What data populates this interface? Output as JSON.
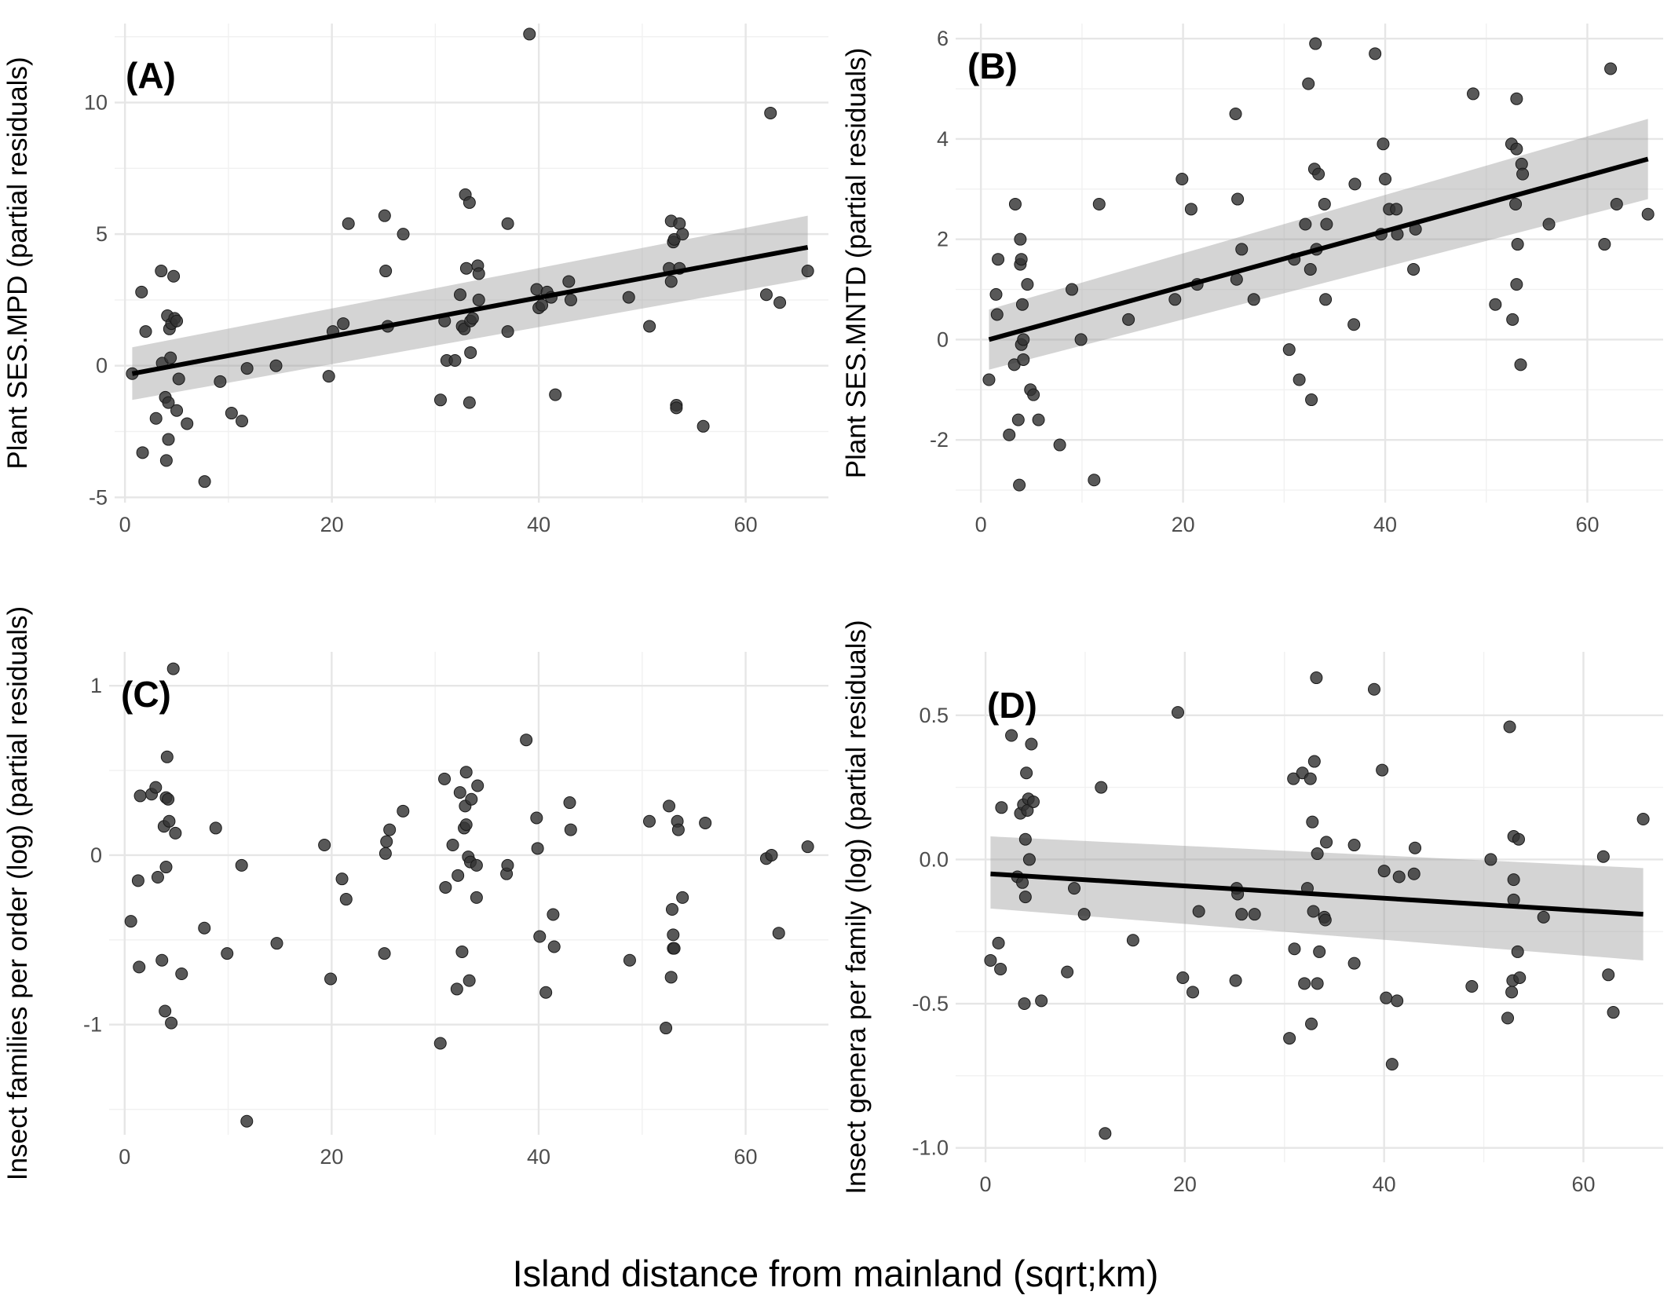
{
  "figure": {
    "xlabel": "Island distance from mainland (sqrt;km)"
  },
  "chart_data": [
    {
      "type": "scatter",
      "panel_label": "(A)",
      "ylabel": "Plant SES.MPD (partial residuals)",
      "xlim": [
        -1,
        68
      ],
      "ylim": [
        -5.2,
        13.0
      ],
      "xticks": [
        0,
        20,
        40,
        60
      ],
      "yticks": [
        -5,
        0,
        5,
        10
      ],
      "ytick_labels": [
        "-5",
        "0",
        "5",
        "10"
      ],
      "grid": true,
      "points": [
        [
          0.7,
          -0.3
        ],
        [
          1.6,
          2.8
        ],
        [
          1.7,
          -3.3
        ],
        [
          2.0,
          1.3
        ],
        [
          3.0,
          -2.0
        ],
        [
          3.5,
          3.6
        ],
        [
          3.6,
          0.1
        ],
        [
          3.9,
          -1.2
        ],
        [
          4.0,
          -3.6
        ],
        [
          4.1,
          1.9
        ],
        [
          4.2,
          -1.4
        ],
        [
          4.2,
          -2.8
        ],
        [
          4.3,
          1.4
        ],
        [
          4.4,
          0.3
        ],
        [
          4.5,
          1.6
        ],
        [
          4.7,
          3.4
        ],
        [
          4.8,
          1.8
        ],
        [
          5.0,
          1.7
        ],
        [
          5.0,
          -1.7
        ],
        [
          5.2,
          -0.5
        ],
        [
          6.0,
          -2.2
        ],
        [
          7.7,
          -4.4
        ],
        [
          9.2,
          -0.6
        ],
        [
          10.3,
          -1.8
        ],
        [
          11.3,
          -2.1
        ],
        [
          11.8,
          -0.1
        ],
        [
          14.6,
          0.0
        ],
        [
          19.7,
          -0.4
        ],
        [
          20.1,
          1.3
        ],
        [
          21.1,
          1.6
        ],
        [
          21.6,
          5.4
        ],
        [
          25.1,
          5.7
        ],
        [
          25.2,
          3.6
        ],
        [
          25.4,
          1.5
        ],
        [
          26.9,
          5.0
        ],
        [
          30.5,
          -1.3
        ],
        [
          30.9,
          1.7
        ],
        [
          31.1,
          0.2
        ],
        [
          31.9,
          0.2
        ],
        [
          32.4,
          2.7
        ],
        [
          32.6,
          1.5
        ],
        [
          32.8,
          1.4
        ],
        [
          32.9,
          6.5
        ],
        [
          33.0,
          3.7
        ],
        [
          33.3,
          -1.4
        ],
        [
          33.3,
          6.2
        ],
        [
          33.4,
          1.7
        ],
        [
          33.4,
          0.5
        ],
        [
          33.6,
          1.8
        ],
        [
          34.1,
          3.8
        ],
        [
          34.2,
          3.5
        ],
        [
          34.2,
          2.5
        ],
        [
          37.0,
          5.4
        ],
        [
          37.0,
          1.3
        ],
        [
          39.1,
          12.6
        ],
        [
          39.8,
          2.9
        ],
        [
          40.0,
          2.2
        ],
        [
          40.3,
          2.3
        ],
        [
          40.8,
          2.8
        ],
        [
          41.2,
          2.6
        ],
        [
          41.6,
          -1.1
        ],
        [
          42.9,
          3.2
        ],
        [
          43.1,
          2.5
        ],
        [
          48.7,
          2.6
        ],
        [
          50.7,
          1.5
        ],
        [
          52.6,
          3.7
        ],
        [
          52.8,
          5.5
        ],
        [
          52.8,
          3.2
        ],
        [
          53.0,
          4.7
        ],
        [
          53.1,
          4.8
        ],
        [
          53.3,
          -1.5
        ],
        [
          53.3,
          -1.6
        ],
        [
          53.6,
          3.7
        ],
        [
          53.6,
          5.4
        ],
        [
          53.9,
          5.0
        ],
        [
          55.9,
          -2.3
        ],
        [
          62.0,
          2.7
        ],
        [
          62.4,
          9.6
        ],
        [
          63.3,
          2.4
        ],
        [
          66.0,
          3.6
        ]
      ],
      "fit": {
        "x": [
          0.7,
          66.0
        ],
        "y": [
          -0.3,
          4.5
        ],
        "ci_low": [
          -1.3,
          3.3
        ],
        "ci_high": [
          0.7,
          5.7
        ]
      }
    },
    {
      "type": "scatter",
      "panel_label": "(B)",
      "ylabel": "Plant SES.MNTD (partial residuals)",
      "xlim": [
        -2.5,
        67.5
      ],
      "ylim": [
        -3.25,
        6.3
      ],
      "xticks": [
        0,
        20,
        40,
        60
      ],
      "yticks": [
        -2,
        0,
        2,
        4,
        6
      ],
      "ytick_labels": [
        "-2",
        "0",
        "2",
        "4",
        "6"
      ],
      "grid": true,
      "points": [
        [
          0.8,
          -0.8
        ],
        [
          1.5,
          0.9
        ],
        [
          1.6,
          0.5
        ],
        [
          1.7,
          1.6
        ],
        [
          2.8,
          -1.9
        ],
        [
          3.3,
          -0.5
        ],
        [
          3.4,
          2.7
        ],
        [
          3.7,
          -1.6
        ],
        [
          3.8,
          -2.9
        ],
        [
          3.9,
          2.0
        ],
        [
          3.9,
          1.5
        ],
        [
          4.0,
          1.6
        ],
        [
          4.0,
          -0.1
        ],
        [
          4.1,
          0.7
        ],
        [
          4.2,
          -0.4
        ],
        [
          4.2,
          0.0
        ],
        [
          4.6,
          1.1
        ],
        [
          4.9,
          -1.0
        ],
        [
          5.2,
          -1.1
        ],
        [
          5.7,
          -1.6
        ],
        [
          7.8,
          -2.1
        ],
        [
          9.0,
          1.0
        ],
        [
          9.9,
          0.0
        ],
        [
          11.2,
          -2.8
        ],
        [
          11.7,
          2.7
        ],
        [
          14.6,
          0.4
        ],
        [
          19.2,
          0.8
        ],
        [
          19.9,
          3.2
        ],
        [
          20.8,
          2.6
        ],
        [
          21.4,
          1.1
        ],
        [
          25.2,
          4.5
        ],
        [
          25.3,
          1.2
        ],
        [
          25.4,
          2.8
        ],
        [
          25.8,
          1.8
        ],
        [
          27.0,
          0.8
        ],
        [
          30.5,
          -0.2
        ],
        [
          31.0,
          1.6
        ],
        [
          31.5,
          -0.8
        ],
        [
          32.1,
          2.3
        ],
        [
          32.4,
          5.1
        ],
        [
          32.6,
          1.4
        ],
        [
          32.7,
          -1.2
        ],
        [
          33.0,
          3.4
        ],
        [
          33.1,
          5.9
        ],
        [
          33.2,
          1.8
        ],
        [
          33.4,
          3.3
        ],
        [
          34.0,
          2.7
        ],
        [
          34.1,
          0.8
        ],
        [
          34.2,
          2.3
        ],
        [
          36.9,
          0.3
        ],
        [
          37.0,
          3.1
        ],
        [
          39.0,
          5.7
        ],
        [
          39.6,
          2.1
        ],
        [
          39.8,
          3.9
        ],
        [
          40.0,
          3.2
        ],
        [
          40.4,
          2.6
        ],
        [
          41.1,
          2.6
        ],
        [
          41.2,
          2.1
        ],
        [
          42.8,
          1.4
        ],
        [
          43.0,
          2.2
        ],
        [
          48.7,
          4.9
        ],
        [
          50.9,
          0.7
        ],
        [
          52.5,
          3.9
        ],
        [
          52.6,
          0.4
        ],
        [
          52.9,
          2.7
        ],
        [
          53.0,
          4.8
        ],
        [
          53.0,
          3.8
        ],
        [
          53.0,
          1.1
        ],
        [
          53.1,
          1.9
        ],
        [
          53.4,
          -0.5
        ],
        [
          53.5,
          3.5
        ],
        [
          53.6,
          3.3
        ],
        [
          56.2,
          2.3
        ],
        [
          61.7,
          1.9
        ],
        [
          62.3,
          5.4
        ],
        [
          62.9,
          2.7
        ],
        [
          66.0,
          2.5
        ]
      ],
      "fit": {
        "x": [
          0.8,
          66.0
        ],
        "y": [
          0.0,
          3.6
        ],
        "ci_low": [
          -0.6,
          2.8
        ],
        "ci_high": [
          0.6,
          4.4
        ]
      }
    },
    {
      "type": "scatter",
      "panel_label": "(C)",
      "ylabel": "Insect families per order (log) (partial residuals)",
      "xlim": [
        -1.5,
        68
      ],
      "ylim": [
        -1.65,
        1.2
      ],
      "xticks": [
        0,
        20,
        40,
        60
      ],
      "yticks": [
        -1,
        0,
        1
      ],
      "ytick_labels": [
        "-1",
        "0",
        "1"
      ],
      "grid": true,
      "points": [
        [
          0.6,
          -0.39
        ],
        [
          1.3,
          -0.15
        ],
        [
          1.4,
          -0.66
        ],
        [
          1.5,
          0.35
        ],
        [
          2.6,
          0.36
        ],
        [
          3.0,
          0.4
        ],
        [
          3.2,
          -0.13
        ],
        [
          3.6,
          -0.62
        ],
        [
          3.8,
          0.17
        ],
        [
          3.9,
          -0.92
        ],
        [
          4.0,
          0.34
        ],
        [
          4.0,
          -0.07
        ],
        [
          4.1,
          0.58
        ],
        [
          4.2,
          0.33
        ],
        [
          4.3,
          0.2
        ],
        [
          4.5,
          -0.99
        ],
        [
          4.7,
          1.1
        ],
        [
          4.9,
          0.13
        ],
        [
          5.5,
          -0.7
        ],
        [
          7.7,
          -0.43
        ],
        [
          8.8,
          0.16
        ],
        [
          9.9,
          -0.58
        ],
        [
          11.3,
          -0.06
        ],
        [
          11.8,
          -1.57
        ],
        [
          14.7,
          -0.52
        ],
        [
          19.3,
          0.06
        ],
        [
          19.9,
          -0.73
        ],
        [
          21.0,
          -0.14
        ],
        [
          21.4,
          -0.26
        ],
        [
          25.1,
          -0.58
        ],
        [
          25.2,
          0.01
        ],
        [
          25.3,
          0.08
        ],
        [
          25.6,
          0.15
        ],
        [
          26.9,
          0.26
        ],
        [
          30.5,
          -1.11
        ],
        [
          30.9,
          0.45
        ],
        [
          31.0,
          -0.19
        ],
        [
          31.7,
          0.06
        ],
        [
          32.1,
          -0.79
        ],
        [
          32.2,
          -0.12
        ],
        [
          32.4,
          0.37
        ],
        [
          32.6,
          -0.57
        ],
        [
          32.8,
          0.16
        ],
        [
          32.9,
          0.29
        ],
        [
          33.0,
          0.18
        ],
        [
          33.0,
          0.49
        ],
        [
          33.2,
          -0.01
        ],
        [
          33.3,
          -0.74
        ],
        [
          33.4,
          -0.04
        ],
        [
          33.5,
          0.33
        ],
        [
          34.0,
          -0.25
        ],
        [
          34.0,
          -0.06
        ],
        [
          34.1,
          0.41
        ],
        [
          36.9,
          -0.11
        ],
        [
          37.0,
          -0.06
        ],
        [
          38.8,
          0.68
        ],
        [
          39.8,
          0.22
        ],
        [
          39.9,
          0.04
        ],
        [
          40.1,
          -0.48
        ],
        [
          40.7,
          -0.81
        ],
        [
          41.4,
          -0.35
        ],
        [
          41.5,
          -0.54
        ],
        [
          43.0,
          0.31
        ],
        [
          43.1,
          0.15
        ],
        [
          48.8,
          -0.62
        ],
        [
          50.7,
          0.2
        ],
        [
          52.3,
          -1.02
        ],
        [
          52.6,
          0.29
        ],
        [
          52.8,
          -0.72
        ],
        [
          52.9,
          -0.32
        ],
        [
          53.0,
          -0.47
        ],
        [
          53.0,
          -0.55
        ],
        [
          53.1,
          -0.55
        ],
        [
          53.4,
          0.2
        ],
        [
          53.5,
          0.15
        ],
        [
          53.9,
          -0.25
        ],
        [
          56.1,
          0.19
        ],
        [
          62.0,
          -0.02
        ],
        [
          62.5,
          0.0
        ],
        [
          63.2,
          -0.46
        ],
        [
          66.0,
          0.05
        ]
      ]
    },
    {
      "type": "scatter",
      "panel_label": "(D)",
      "ylabel": "Insect genera per family (log) (partial residuals)",
      "xlim": [
        -3,
        68
      ],
      "ylim": [
        -1.05,
        0.72
      ],
      "xticks": [
        0,
        20,
        40,
        60
      ],
      "yticks": [
        -1.0,
        -0.5,
        0.0,
        0.5
      ],
      "ytick_labels": [
        "-1.0",
        "-0.5",
        "0.0",
        "0.5"
      ],
      "grid": true,
      "points": [
        [
          0.5,
          -0.35
        ],
        [
          1.3,
          -0.29
        ],
        [
          1.5,
          -0.38
        ],
        [
          1.6,
          0.18
        ],
        [
          2.6,
          0.43
        ],
        [
          3.2,
          -0.06
        ],
        [
          3.5,
          0.16
        ],
        [
          3.7,
          -0.08
        ],
        [
          3.8,
          0.19
        ],
        [
          3.9,
          -0.5
        ],
        [
          4.0,
          0.07
        ],
        [
          4.0,
          -0.13
        ],
        [
          4.1,
          0.3
        ],
        [
          4.2,
          0.17
        ],
        [
          4.3,
          0.21
        ],
        [
          4.4,
          -0.0
        ],
        [
          4.6,
          0.4
        ],
        [
          4.8,
          0.2
        ],
        [
          5.6,
          -0.49
        ],
        [
          8.2,
          -0.39
        ],
        [
          8.9,
          -0.1
        ],
        [
          9.9,
          -0.19
        ],
        [
          11.6,
          0.25
        ],
        [
          12.0,
          -0.95
        ],
        [
          14.8,
          -0.28
        ],
        [
          19.3,
          0.51
        ],
        [
          19.8,
          -0.41
        ],
        [
          20.8,
          -0.46
        ],
        [
          21.4,
          -0.18
        ],
        [
          25.1,
          -0.42
        ],
        [
          25.2,
          -0.1
        ],
        [
          25.3,
          -0.12
        ],
        [
          25.7,
          -0.19
        ],
        [
          27.0,
          -0.19
        ],
        [
          30.5,
          -0.62
        ],
        [
          30.9,
          0.28
        ],
        [
          31.0,
          -0.31
        ],
        [
          31.8,
          0.3
        ],
        [
          32.0,
          -0.43
        ],
        [
          32.3,
          -0.1
        ],
        [
          32.6,
          0.28
        ],
        [
          32.7,
          -0.57
        ],
        [
          32.8,
          0.13
        ],
        [
          32.9,
          -0.18
        ],
        [
          33.0,
          0.34
        ],
        [
          33.2,
          0.63
        ],
        [
          33.3,
          -0.43
        ],
        [
          33.3,
          0.02
        ],
        [
          33.5,
          -0.32
        ],
        [
          34.0,
          -0.2
        ],
        [
          34.2,
          0.06
        ],
        [
          34.1,
          -0.21
        ],
        [
          37.0,
          -0.36
        ],
        [
          37.0,
          0.05
        ],
        [
          39.0,
          0.59
        ],
        [
          39.8,
          0.31
        ],
        [
          40.0,
          -0.04
        ],
        [
          40.2,
          -0.48
        ],
        [
          40.8,
          -0.71
        ],
        [
          41.3,
          -0.49
        ],
        [
          41.5,
          -0.06
        ],
        [
          43.0,
          -0.05
        ],
        [
          43.1,
          0.04
        ],
        [
          48.8,
          -0.44
        ],
        [
          50.7,
          0.0
        ],
        [
          52.4,
          -0.55
        ],
        [
          52.6,
          0.46
        ],
        [
          52.8,
          -0.46
        ],
        [
          52.9,
          -0.42
        ],
        [
          53.0,
          0.08
        ],
        [
          53.0,
          -0.07
        ],
        [
          53.0,
          -0.14
        ],
        [
          53.4,
          -0.32
        ],
        [
          53.5,
          0.07
        ],
        [
          53.6,
          -0.41
        ],
        [
          56.0,
          -0.2
        ],
        [
          62.0,
          0.01
        ],
        [
          62.5,
          -0.4
        ],
        [
          63.0,
          -0.53
        ],
        [
          66.0,
          0.14
        ]
      ],
      "fit": {
        "x": [
          0.5,
          66.0
        ],
        "y": [
          -0.05,
          -0.19
        ],
        "ci_low": [
          -0.17,
          -0.35
        ],
        "ci_high": [
          0.08,
          -0.03
        ]
      }
    }
  ]
}
